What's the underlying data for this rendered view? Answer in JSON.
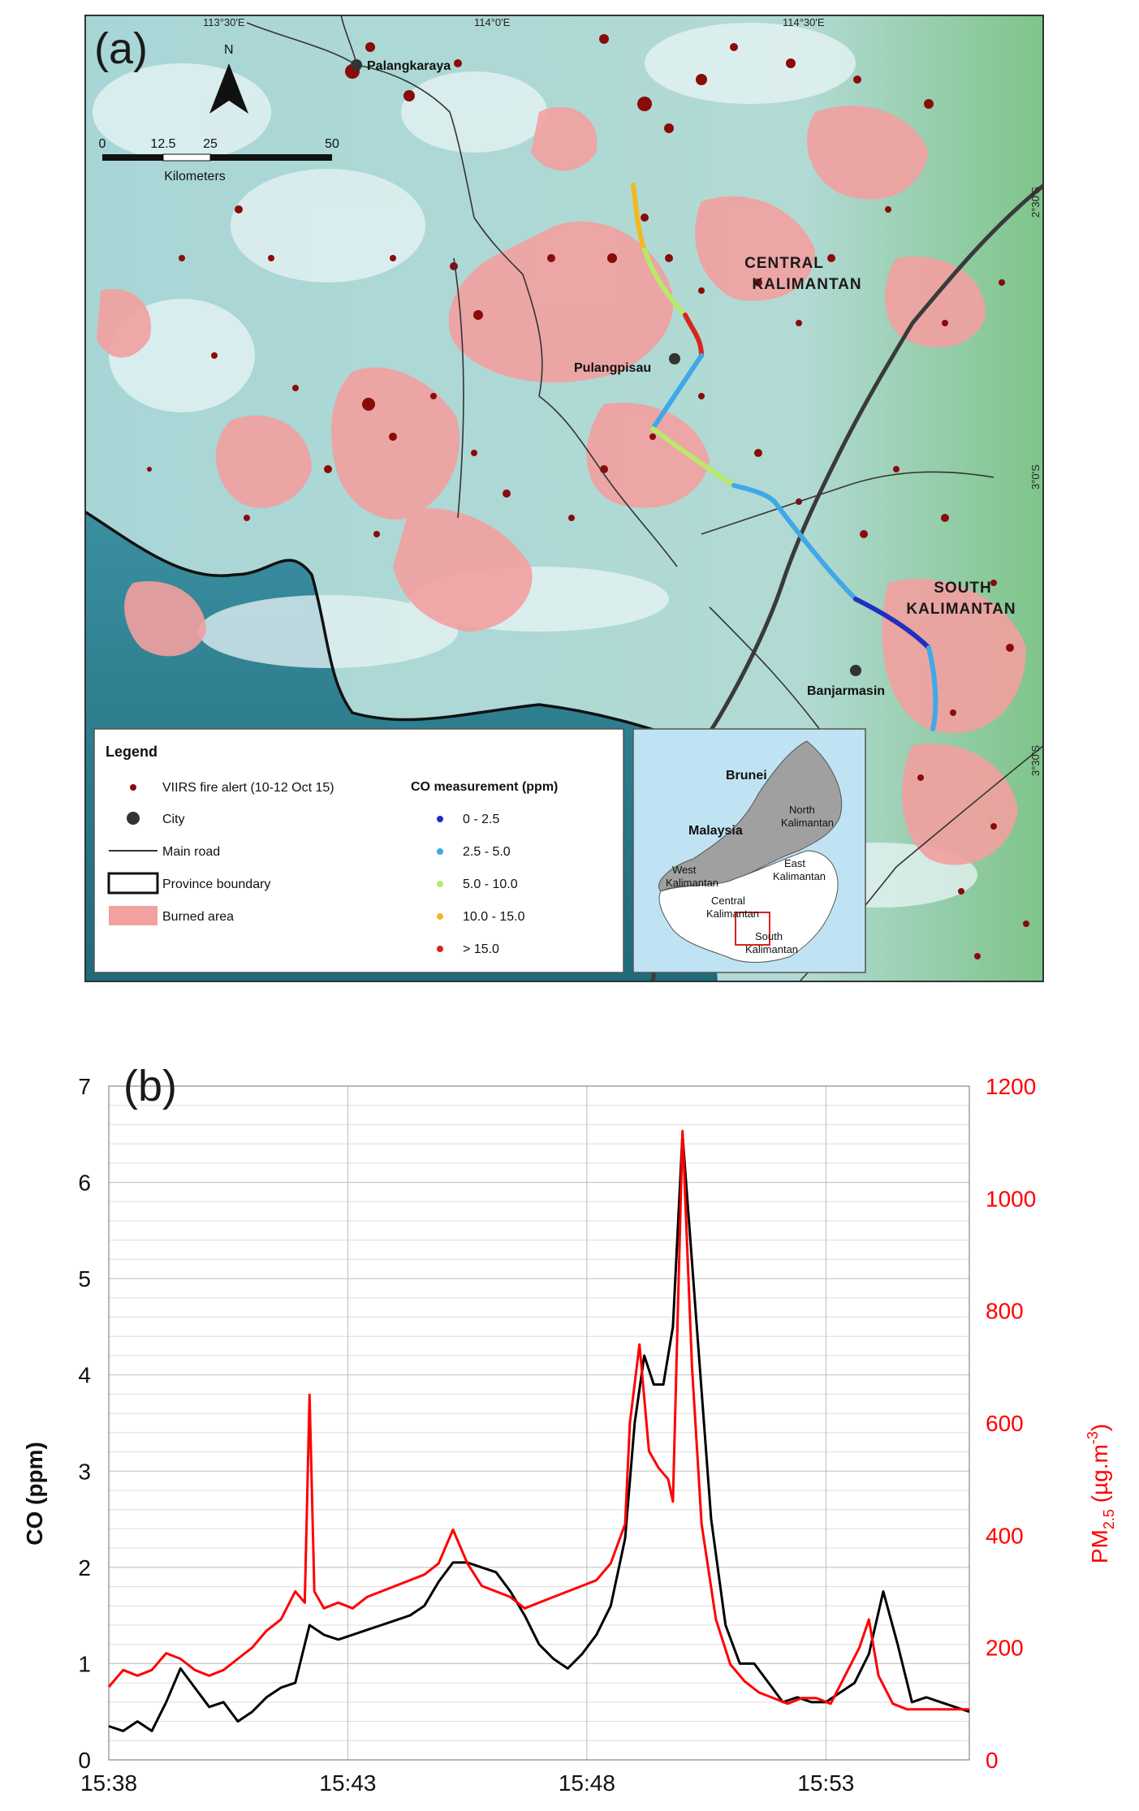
{
  "map": {
    "panel_label": "(a)",
    "longitude_labels": [
      "113°30'E",
      "114°0'E",
      "114°30'E"
    ],
    "latitude_labels": [
      "2°30'S",
      "3°0'S",
      "3°30'S"
    ],
    "north_label": "N",
    "scale_ticks": [
      "0",
      "12.5",
      "25",
      "50"
    ],
    "scale_unit": "Kilometers",
    "regions": [
      "CENTRAL",
      "KALIMANTAN",
      "SOUTH",
      "KALIMANTAN"
    ],
    "cities": [
      "Palangkaraya",
      "Pulangpisau",
      "Banjarmasin"
    ],
    "legend": {
      "title": "Legend",
      "items": [
        "VIIRS fire alert (10-12 Oct 15)",
        "City",
        "Main road",
        "Province boundary",
        "Burned area"
      ],
      "co_title": "CO measurement (ppm)",
      "co_classes": [
        "0 - 2.5",
        "2.5 - 5.0",
        "5.0 - 10.0",
        "10.0 - 15.0",
        "> 15.0"
      ],
      "co_colors": [
        "#1f2fbf",
        "#3fa9e8",
        "#b9e86a",
        "#f2b824",
        "#d7261e"
      ],
      "fire_color": "#8b0a0a",
      "burned_color": "#f2a0a0"
    },
    "inset": {
      "labels": [
        "Brunei",
        "Malaysia",
        "North",
        "Kalimantan",
        "East",
        "Kalimantan",
        "West",
        "Kalimantan",
        "Central",
        "Kalimantan",
        "South",
        "Kalimantan"
      ]
    }
  },
  "chart_data": {
    "type": "line",
    "panel_label": "(b)",
    "x_ticks": [
      "15:38",
      "15:43",
      "15:48",
      "15:53"
    ],
    "xlim": [
      "15:38",
      "15:56"
    ],
    "ylabel": "CO (ppm)",
    "ylim": [
      0,
      7
    ],
    "y_ticks": [
      0,
      1,
      2,
      3,
      4,
      5,
      6,
      7
    ],
    "y2label_main": "PM",
    "y2label_sub": "2.5",
    "y2label_rest": " (µg.m",
    "y2label_sup": "-3",
    "y2label_end": ")",
    "y2lim": [
      0,
      1200
    ],
    "y2_ticks": [
      0,
      200,
      400,
      600,
      800,
      1000,
      1200
    ],
    "series": [
      {
        "color": "#000000",
        "axis": "left",
        "x": [
          0,
          0.3,
          0.6,
          0.9,
          1.2,
          1.5,
          1.8,
          2.1,
          2.4,
          2.7,
          3.0,
          3.3,
          3.6,
          3.9,
          4.2,
          4.5,
          4.8,
          5.1,
          5.4,
          5.7,
          6.0,
          6.3,
          6.6,
          6.9,
          7.2,
          7.5,
          7.8,
          8.1,
          8.4,
          8.7,
          9.0,
          9.3,
          9.6,
          9.9,
          10.2,
          10.5,
          10.8,
          11.0,
          11.2,
          11.4,
          11.6,
          11.8,
          12.0,
          12.3,
          12.6,
          12.9,
          13.2,
          13.5,
          13.8,
          14.1,
          14.4,
          14.7,
          15.0,
          15.3,
          15.6,
          15.9,
          16.2,
          16.5,
          16.8,
          17.1,
          17.4,
          17.7,
          18.0
        ],
        "y": [
          0.35,
          0.3,
          0.4,
          0.3,
          0.6,
          0.95,
          0.75,
          0.55,
          0.6,
          0.4,
          0.5,
          0.65,
          0.75,
          0.8,
          1.4,
          1.3,
          1.25,
          1.3,
          1.35,
          1.4,
          1.45,
          1.5,
          1.6,
          1.85,
          2.05,
          2.05,
          2.0,
          1.95,
          1.75,
          1.5,
          1.2,
          1.05,
          0.95,
          1.1,
          1.3,
          1.6,
          2.3,
          3.5,
          4.2,
          3.9,
          3.9,
          4.5,
          6.5,
          4.5,
          2.5,
          1.4,
          1.0,
          1.0,
          0.8,
          0.6,
          0.65,
          0.6,
          0.6,
          0.7,
          0.8,
          1.1,
          1.75,
          1.2,
          0.6,
          0.65,
          0.6,
          0.55,
          0.5
        ]
      },
      {
        "color": "#ff0000",
        "axis": "right",
        "x": [
          0,
          0.3,
          0.6,
          0.9,
          1.2,
          1.5,
          1.8,
          2.1,
          2.4,
          2.7,
          3.0,
          3.3,
          3.6,
          3.9,
          4.1,
          4.2,
          4.3,
          4.5,
          4.8,
          5.1,
          5.4,
          5.7,
          6.0,
          6.3,
          6.6,
          6.9,
          7.2,
          7.5,
          7.8,
          8.1,
          8.4,
          8.7,
          9.0,
          9.3,
          9.6,
          9.9,
          10.2,
          10.5,
          10.8,
          10.9,
          11.1,
          11.3,
          11.5,
          11.7,
          11.8,
          12.0,
          12.2,
          12.4,
          12.7,
          13.0,
          13.3,
          13.6,
          13.9,
          14.2,
          14.5,
          14.8,
          15.1,
          15.4,
          15.7,
          15.9,
          16.1,
          16.4,
          16.7,
          17.0,
          17.3,
          17.6,
          18.0
        ],
        "y": [
          130,
          160,
          150,
          160,
          190,
          180,
          160,
          150,
          160,
          180,
          200,
          230,
          250,
          300,
          280,
          650,
          300,
          270,
          280,
          270,
          290,
          300,
          310,
          320,
          330,
          350,
          410,
          350,
          310,
          300,
          290,
          270,
          280,
          290,
          300,
          310,
          320,
          350,
          420,
          600,
          740,
          550,
          520,
          500,
          460,
          1120,
          700,
          420,
          250,
          170,
          140,
          120,
          110,
          100,
          110,
          110,
          100,
          150,
          200,
          250,
          150,
          100,
          90,
          90,
          90,
          90,
          90
        ]
      }
    ]
  }
}
